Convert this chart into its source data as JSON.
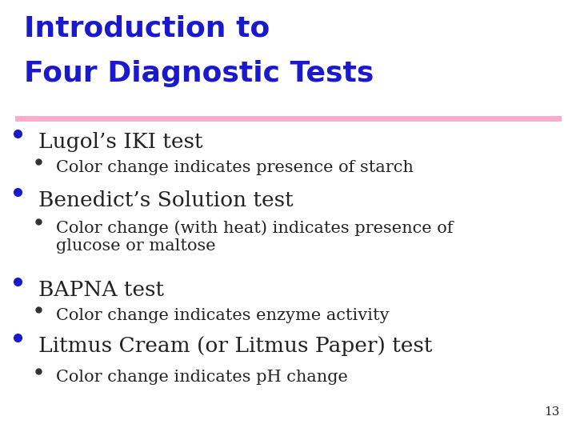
{
  "title_line1": "Introduction to",
  "title_line2": "Four Diagnostic Tests",
  "title_color": "#1a1acc",
  "divider_color": "#ffaacc",
  "background_color": "#ffffff",
  "bullet_color_l1": "#1a1acc",
  "bullet_color_l2": "#333333",
  "text_color": "#222222",
  "page_number": "13",
  "title_fontsize": 26,
  "items": [
    {
      "level": 1,
      "text": "Lugol’s IKI test",
      "font_size": 19
    },
    {
      "level": 2,
      "text": "Color change indicates presence of starch",
      "font_size": 15
    },
    {
      "level": 1,
      "text": "Benedict’s Solution test",
      "font_size": 19
    },
    {
      "level": 2,
      "text": "Color change (with heat) indicates presence of\nglucose or maltose",
      "font_size": 15
    },
    {
      "level": 1,
      "text": "BAPNA test",
      "font_size": 19
    },
    {
      "level": 2,
      "text": "Color change indicates enzyme activity",
      "font_size": 15
    },
    {
      "level": 1,
      "text": "Litmus Cream (or Litmus Paper) test",
      "font_size": 19
    },
    {
      "level": 2,
      "text": "Color change indicates pH change",
      "font_size": 15
    }
  ]
}
